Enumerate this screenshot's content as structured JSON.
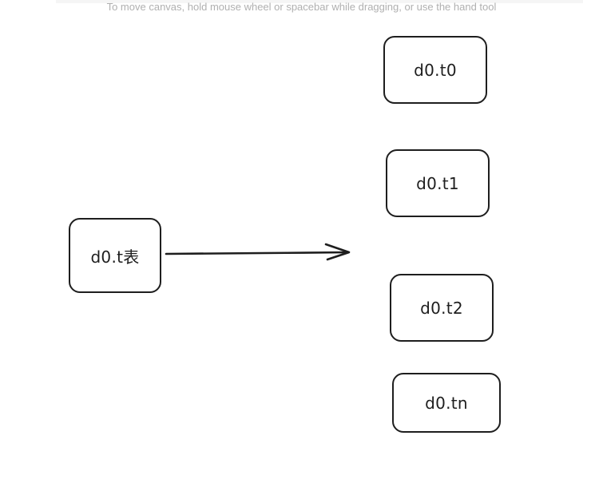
{
  "canvas_hint": "To move canvas, hold mouse wheel or spacebar while dragging, or use the hand tool",
  "nodes": {
    "source": {
      "label": "d0.t表"
    },
    "target_0": {
      "label": "d0.t0"
    },
    "target_1": {
      "label": "d0.t1"
    },
    "target_2": {
      "label": "d0.t2"
    },
    "target_n": {
      "label": "d0.tn"
    }
  },
  "colors": {
    "stroke": "#1e1e1e",
    "hint_text": "#b0b0b0",
    "background": "#ffffff"
  }
}
